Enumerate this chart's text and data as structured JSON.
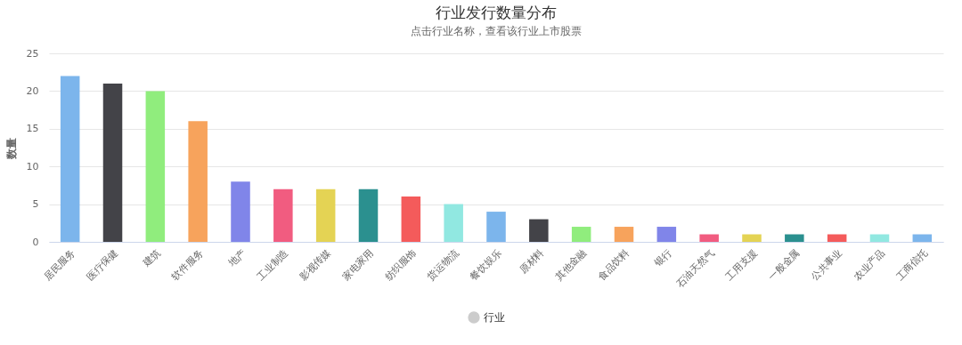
{
  "chart_data": {
    "type": "bar",
    "title": "行业发行数量分布",
    "subtitle": "点击行业名称，查看该行业上市股票",
    "ylabel": "数量",
    "categories": [
      "居民服务",
      "医疗保健",
      "建筑",
      "软件服务",
      "地产",
      "工业制造",
      "影视传媒",
      "家电家用",
      "纺织服饰",
      "货运物流",
      "餐饮娱乐",
      "原材料",
      "其他金融",
      "食品饮料",
      "银行",
      "石油天然气",
      "工用支援",
      "一般金属",
      "公共事业",
      "农业产品",
      "工商信托"
    ],
    "series": [
      {
        "name": "行业",
        "color": "#cccccc",
        "values": [
          22,
          21,
          20,
          16,
          8,
          7,
          7,
          7,
          6,
          5,
          4,
          3,
          2,
          2,
          2,
          1,
          1,
          1,
          1,
          1,
          1
        ],
        "colors": [
          "#7cb5ec",
          "#434348",
          "#90ed7d",
          "#f7a35c",
          "#8085e9",
          "#f15c80",
          "#e4d354",
          "#2b908f",
          "#f45b5b",
          "#91e8e1",
          "#7cb5ec",
          "#434348",
          "#90ed7d",
          "#f7a35c",
          "#8085e9",
          "#f15c80",
          "#e4d354",
          "#2b908f",
          "#f45b5b",
          "#91e8e1",
          "#7cb5ec"
        ]
      }
    ],
    "ylim": [
      0,
      25
    ],
    "yticks": [
      0,
      5,
      10,
      15,
      20,
      25
    ],
    "grid": "y",
    "legend": "bottom"
  }
}
